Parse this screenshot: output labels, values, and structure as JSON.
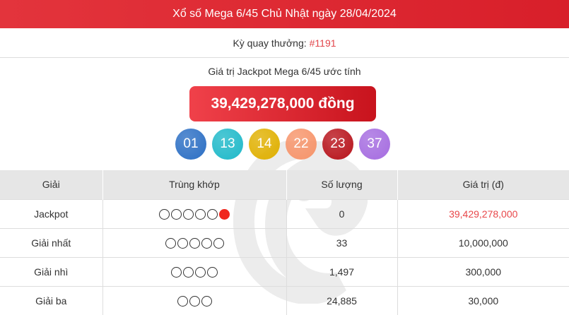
{
  "header": {
    "title": "Xổ số Mega 6/45 Chủ Nhật ngày 28/04/2024"
  },
  "draw": {
    "label": "Kỳ quay thưởng:",
    "number": "#1191"
  },
  "jackpot": {
    "label": "Giá trị Jackpot Mega 6/45 ước tính",
    "value": "39,429,278,000 đồng"
  },
  "balls": [
    {
      "n": "01",
      "color": "#2c6fc4"
    },
    {
      "n": "13",
      "color": "#1fb9c9"
    },
    {
      "n": "14",
      "color": "#e0b000"
    },
    {
      "n": "22",
      "color": "#f7946a"
    },
    {
      "n": "23",
      "color": "#b8141c"
    },
    {
      "n": "37",
      "color": "#a56ce0"
    }
  ],
  "table": {
    "headers": [
      "Giải",
      "Trùng khớp",
      "Số lượng",
      "Giá trị (đ)"
    ],
    "rows": [
      {
        "prize": "Jackpot",
        "match": 5,
        "bonus": true,
        "count": "0",
        "value": "39,429,278,000",
        "highlight": true
      },
      {
        "prize": "Giải nhất",
        "match": 5,
        "bonus": false,
        "count": "33",
        "value": "10,000,000"
      },
      {
        "prize": "Giải nhì",
        "match": 4,
        "bonus": false,
        "count": "1,497",
        "value": "300,000"
      },
      {
        "prize": "Giải ba",
        "match": 3,
        "bonus": false,
        "count": "24,885",
        "value": "30,000"
      }
    ]
  }
}
